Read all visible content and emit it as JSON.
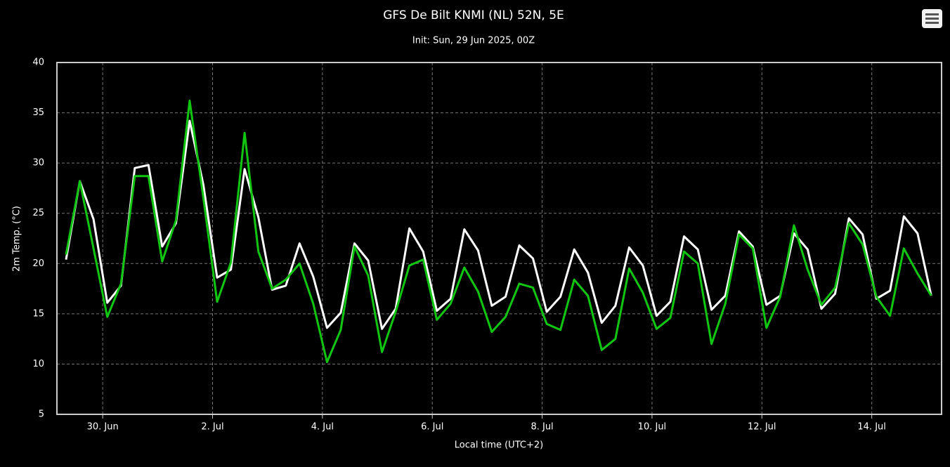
{
  "chart_data": {
    "type": "line",
    "title": "GFS De Bilt KNMI (NL) 52N, 5E",
    "subtitle": "Init: Sun, 29 Jun 2025, 00Z",
    "x_label": "Local time (UTC+2)",
    "y_label": "2m Temp. (°C)",
    "x": [
      "2025-06-29T08:00",
      "2025-06-29T14:00",
      "2025-06-29T20:00",
      "2025-06-30T02:00",
      "2025-06-30T08:00",
      "2025-06-30T14:00",
      "2025-06-30T20:00",
      "2025-07-01T02:00",
      "2025-07-01T08:00",
      "2025-07-01T14:00",
      "2025-07-01T20:00",
      "2025-07-02T02:00",
      "2025-07-02T08:00",
      "2025-07-02T14:00",
      "2025-07-02T20:00",
      "2025-07-03T02:00",
      "2025-07-03T08:00",
      "2025-07-03T14:00",
      "2025-07-03T20:00",
      "2025-07-04T02:00",
      "2025-07-04T08:00",
      "2025-07-04T14:00",
      "2025-07-04T20:00",
      "2025-07-05T02:00",
      "2025-07-05T08:00",
      "2025-07-05T14:00",
      "2025-07-05T20:00",
      "2025-07-06T02:00",
      "2025-07-06T08:00",
      "2025-07-06T14:00",
      "2025-07-06T20:00",
      "2025-07-07T02:00",
      "2025-07-07T08:00",
      "2025-07-07T14:00",
      "2025-07-07T20:00",
      "2025-07-08T02:00",
      "2025-07-08T08:00",
      "2025-07-08T14:00",
      "2025-07-08T20:00",
      "2025-07-09T02:00",
      "2025-07-09T08:00",
      "2025-07-09T14:00",
      "2025-07-09T20:00",
      "2025-07-10T02:00",
      "2025-07-10T08:00",
      "2025-07-10T14:00",
      "2025-07-10T20:00",
      "2025-07-11T02:00",
      "2025-07-11T08:00",
      "2025-07-11T14:00",
      "2025-07-11T20:00",
      "2025-07-12T02:00",
      "2025-07-12T08:00",
      "2025-07-12T14:00",
      "2025-07-12T20:00",
      "2025-07-13T02:00",
      "2025-07-13T08:00",
      "2025-07-13T14:00",
      "2025-07-13T20:00",
      "2025-07-14T02:00",
      "2025-07-14T08:00",
      "2025-07-14T14:00",
      "2025-07-14T20:00",
      "2025-07-15T02:00"
    ],
    "series": [
      {
        "color": "#ffffff",
        "values": [
          20.4,
          28.2,
          24.4,
          16.1,
          17.8,
          29.5,
          29.8,
          21.7,
          24.0,
          34.2,
          27.8,
          18.6,
          19.4,
          29.4,
          24.6,
          17.4,
          17.8,
          22.0,
          18.7,
          13.6,
          15.1,
          22.0,
          20.3,
          13.5,
          15.5,
          23.5,
          21.2,
          15.3,
          16.5,
          23.4,
          21.3,
          15.8,
          16.7,
          21.8,
          20.5,
          15.2,
          16.7,
          21.4,
          19.1,
          14.1,
          15.8,
          21.6,
          19.8,
          14.8,
          16.2,
          22.7,
          21.4,
          15.4,
          16.8,
          23.2,
          21.7,
          15.9,
          16.8,
          23.0,
          21.4,
          15.5,
          17.0,
          24.5,
          22.9,
          16.5,
          17.3,
          24.7,
          23.0,
          16.8
        ]
      },
      {
        "color": "#11c611",
        "values": [
          20.9,
          28.2,
          21.5,
          14.7,
          18.0,
          28.7,
          28.7,
          20.2,
          24.3,
          36.2,
          26.5,
          16.2,
          20.1,
          33.0,
          21.2,
          17.5,
          18.4,
          20.0,
          16.0,
          10.2,
          13.4,
          21.7,
          18.8,
          11.2,
          15.2,
          19.8,
          20.4,
          14.4,
          16.0,
          19.6,
          17.2,
          13.2,
          14.7,
          18.0,
          17.6,
          14.0,
          13.4,
          18.4,
          16.8,
          11.4,
          12.5,
          19.5,
          17.1,
          13.5,
          14.6,
          21.2,
          20.0,
          12.0,
          16.0,
          22.9,
          21.5,
          13.6,
          16.7,
          23.8,
          19.4,
          15.9,
          17.6,
          24.0,
          21.9,
          16.7,
          14.8,
          21.5,
          19.0,
          16.8
        ]
      }
    ],
    "xlim": [
      "2025-06-29T04:00",
      "2025-07-15T06:30"
    ],
    "xticks": [
      {
        "value": "2025-06-30T00:00",
        "label": "30. Jun"
      },
      {
        "value": "2025-07-02T00:00",
        "label": "2. Jul"
      },
      {
        "value": "2025-07-04T00:00",
        "label": "4. Jul"
      },
      {
        "value": "2025-07-06T00:00",
        "label": "6. Jul"
      },
      {
        "value": "2025-07-08T00:00",
        "label": "8. Jul"
      },
      {
        "value": "2025-07-10T00:00",
        "label": "10. Jul"
      },
      {
        "value": "2025-07-12T00:00",
        "label": "12. Jul"
      },
      {
        "value": "2025-07-14T00:00",
        "label": "14. Jul"
      }
    ],
    "ylim": [
      5,
      40
    ],
    "yticks": [
      5,
      10,
      15,
      20,
      25,
      30,
      35,
      40
    ],
    "grid": true
  }
}
